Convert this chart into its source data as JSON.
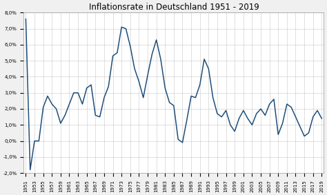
{
  "title": "Inflationsrate in Deutschland 1951 - 2019",
  "years": [
    1951,
    1952,
    1953,
    1954,
    1955,
    1956,
    1957,
    1958,
    1959,
    1960,
    1961,
    1962,
    1963,
    1964,
    1965,
    1966,
    1967,
    1968,
    1969,
    1970,
    1971,
    1972,
    1973,
    1974,
    1975,
    1976,
    1977,
    1978,
    1979,
    1980,
    1981,
    1982,
    1983,
    1984,
    1985,
    1986,
    1987,
    1988,
    1989,
    1990,
    1991,
    1992,
    1993,
    1994,
    1995,
    1996,
    1997,
    1998,
    1999,
    2000,
    2001,
    2002,
    2003,
    2004,
    2005,
    2006,
    2007,
    2008,
    2009,
    2010,
    2011,
    2012,
    2013,
    2014,
    2015,
    2016,
    2017,
    2018,
    2019
  ],
  "values": [
    7.6,
    -1.8,
    0.0,
    0.0,
    2.1,
    2.8,
    2.3,
    2.0,
    1.1,
    1.6,
    2.3,
    3.0,
    3.0,
    2.3,
    3.3,
    3.5,
    1.6,
    1.5,
    2.7,
    3.4,
    5.3,
    5.5,
    7.1,
    7.0,
    5.9,
    4.5,
    3.7,
    2.7,
    4.1,
    5.4,
    6.3,
    5.1,
    3.3,
    2.4,
    2.2,
    0.1,
    -0.1,
    1.3,
    2.8,
    2.7,
    3.5,
    5.1,
    4.5,
    2.7,
    1.7,
    1.5,
    1.9,
    1.0,
    0.6,
    1.4,
    1.9,
    1.4,
    1.0,
    1.7,
    2.0,
    1.6,
    2.3,
    2.6,
    0.4,
    1.1,
    2.3,
    2.1,
    1.5,
    0.9,
    0.3,
    0.5,
    1.5,
    1.9,
    1.4
  ],
  "line_color": "#1f4e79",
  "bg_color": "#f0f0f0",
  "plot_bg_color": "#ffffff",
  "grid_color": "#c8c8c8",
  "ylim": [
    -2.0,
    8.0
  ],
  "yticks": [
    -2.0,
    -1.0,
    0.0,
    1.0,
    2.0,
    3.0,
    4.0,
    5.0,
    6.0,
    7.0,
    8.0
  ],
  "ytick_labels": [
    "-2,0%",
    "-1,0%",
    "0,0%",
    "1,0%",
    "2,0%",
    "3,0%",
    "4,0%",
    "5,0%",
    "6,0%",
    "7,0%",
    "8,0%"
  ],
  "title_fontsize": 8.5,
  "tick_fontsize": 5.0,
  "line_width": 1.1
}
